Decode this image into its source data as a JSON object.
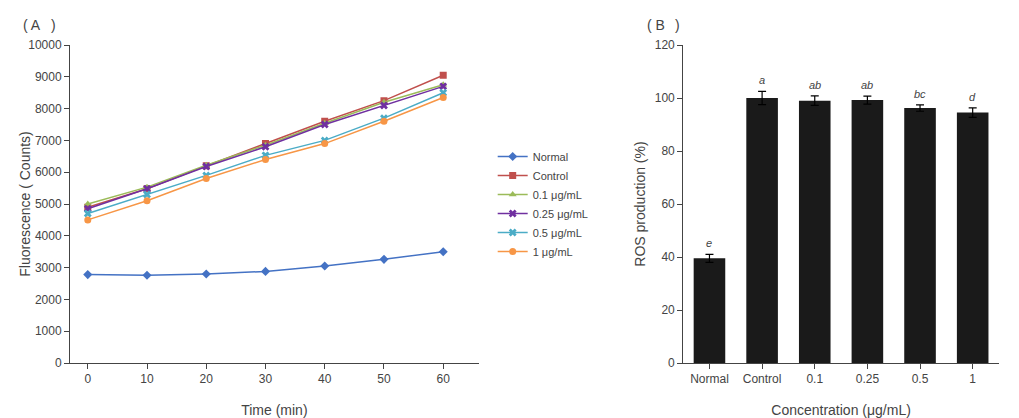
{
  "chart_data": [
    {
      "type": "line",
      "xlabel": "Time (min)",
      "ylabel": "Fluorescence ( Counts)",
      "x": [
        0,
        10,
        20,
        30,
        40,
        50,
        60
      ],
      "xlim": [
        -3,
        66
      ],
      "xticks": [
        0,
        10,
        20,
        30,
        40,
        50,
        60
      ],
      "ylim": [
        0,
        10000
      ],
      "yticks": [
        0,
        1000,
        2000,
        3000,
        4000,
        5000,
        6000,
        7000,
        8000,
        9000,
        10000
      ],
      "grid": false,
      "legend": "right",
      "annotations": [
        {
          "text": "( A"
        },
        {
          "text": ")"
        }
      ],
      "series": [
        {
          "name": "Normal",
          "color": "#4472C4",
          "marker": "diamond",
          "values": [
            2780,
            2760,
            2800,
            2880,
            3050,
            3260,
            3500
          ]
        },
        {
          "name": "Control",
          "color": "#C0504D",
          "marker": "square",
          "values": [
            4900,
            5480,
            6200,
            6900,
            7600,
            8250,
            9050
          ]
        },
        {
          "name": "0.1 μg/mL",
          "color": "#9BBB59",
          "marker": "triangle-up",
          "values": [
            5000,
            5530,
            6220,
            6850,
            7540,
            8200,
            8750
          ]
        },
        {
          "name": "0.25 μg/mL",
          "color": "#7030A0",
          "marker": "x",
          "values": [
            4850,
            5480,
            6180,
            6800,
            7500,
            8100,
            8700
          ]
        },
        {
          "name": "0.5 μg/mL",
          "color": "#4BACC6",
          "marker": "x",
          "values": [
            4700,
            5300,
            5900,
            6530,
            7000,
            7700,
            8500
          ]
        },
        {
          "name": "1 μg/mL",
          "color": "#F79646",
          "marker": "circle",
          "values": [
            4500,
            5100,
            5800,
            6400,
            6900,
            7600,
            8350
          ]
        }
      ]
    },
    {
      "type": "bar",
      "xlabel": "Concentration (μg/mL)",
      "ylabel": "ROS production (%)",
      "categories": [
        "Normal",
        "Control",
        "0.1",
        "0.25",
        "0.5",
        "1"
      ],
      "values": [
        39.5,
        100.0,
        99.0,
        99.2,
        96.2,
        94.5
      ],
      "errors": [
        1.5,
        2.5,
        1.8,
        1.5,
        1.2,
        1.8
      ],
      "color": "#1a1a1a",
      "ylim": [
        0,
        120
      ],
      "yticks": [
        0,
        20,
        40,
        60,
        80,
        100,
        120
      ],
      "grid": false,
      "annotations": [
        {
          "text": "( B"
        },
        {
          "text": ")"
        },
        {
          "text": "e",
          "category": "Normal"
        },
        {
          "text": "a",
          "category": "Control"
        },
        {
          "text": "ab",
          "category": "0.1"
        },
        {
          "text": "ab",
          "category": "0.25"
        },
        {
          "text": "bc",
          "category": "0.5"
        },
        {
          "text": "d",
          "category": "1"
        }
      ]
    }
  ]
}
